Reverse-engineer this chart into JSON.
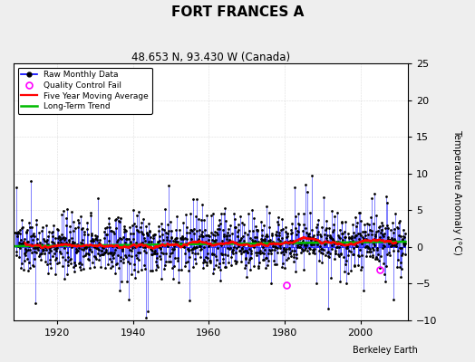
{
  "title": "FORT FRANCES A",
  "subtitle": "48.653 N, 93.430 W (Canada)",
  "ylabel": "Temperature Anomaly (°C)",
  "credit": "Berkeley Earth",
  "year_start": 1909,
  "year_end": 2011,
  "ylim": [
    -10,
    25
  ],
  "yticks": [
    -10,
    -5,
    0,
    5,
    10,
    15,
    20,
    25
  ],
  "xticks": [
    1920,
    1940,
    1960,
    1980,
    2000
  ],
  "raw_color": "#0000ff",
  "moving_avg_color": "#ff0000",
  "trend_color": "#00bb00",
  "qc_fail_color": "#ff00ff",
  "background_color": "#eeeeee",
  "plot_bg_color": "#ffffff",
  "seed": 137
}
